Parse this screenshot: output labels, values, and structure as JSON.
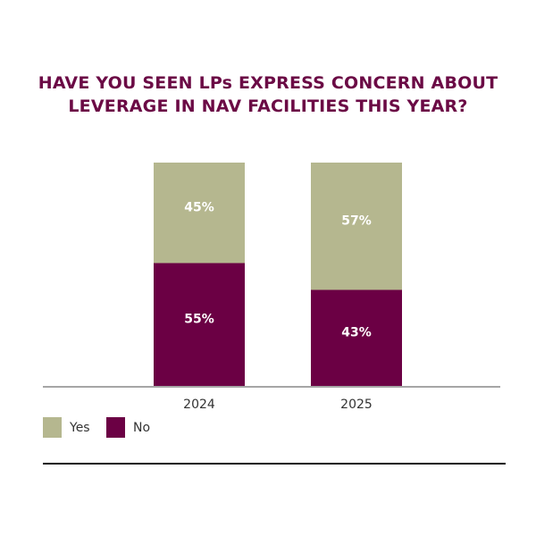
{
  "chart_data": {
    "type": "bar",
    "stacked": true,
    "title": "HAVE YOU SEEN LPs EXPRESS CONCERN ABOUT LEVERAGE IN NAV FACILITIES THIS YEAR?",
    "categories": [
      "2024",
      "2025"
    ],
    "series": [
      {
        "name": "No",
        "values": [
          55,
          43
        ],
        "labels": [
          "55%",
          "43%"
        ],
        "color": "#6b0044"
      },
      {
        "name": "Yes",
        "values": [
          45,
          57
        ],
        "labels": [
          "45%",
          "57%"
        ],
        "color": "#b5b78f"
      }
    ],
    "ylim": [
      0,
      100
    ],
    "grid": false,
    "legend": "bottom-left"
  }
}
